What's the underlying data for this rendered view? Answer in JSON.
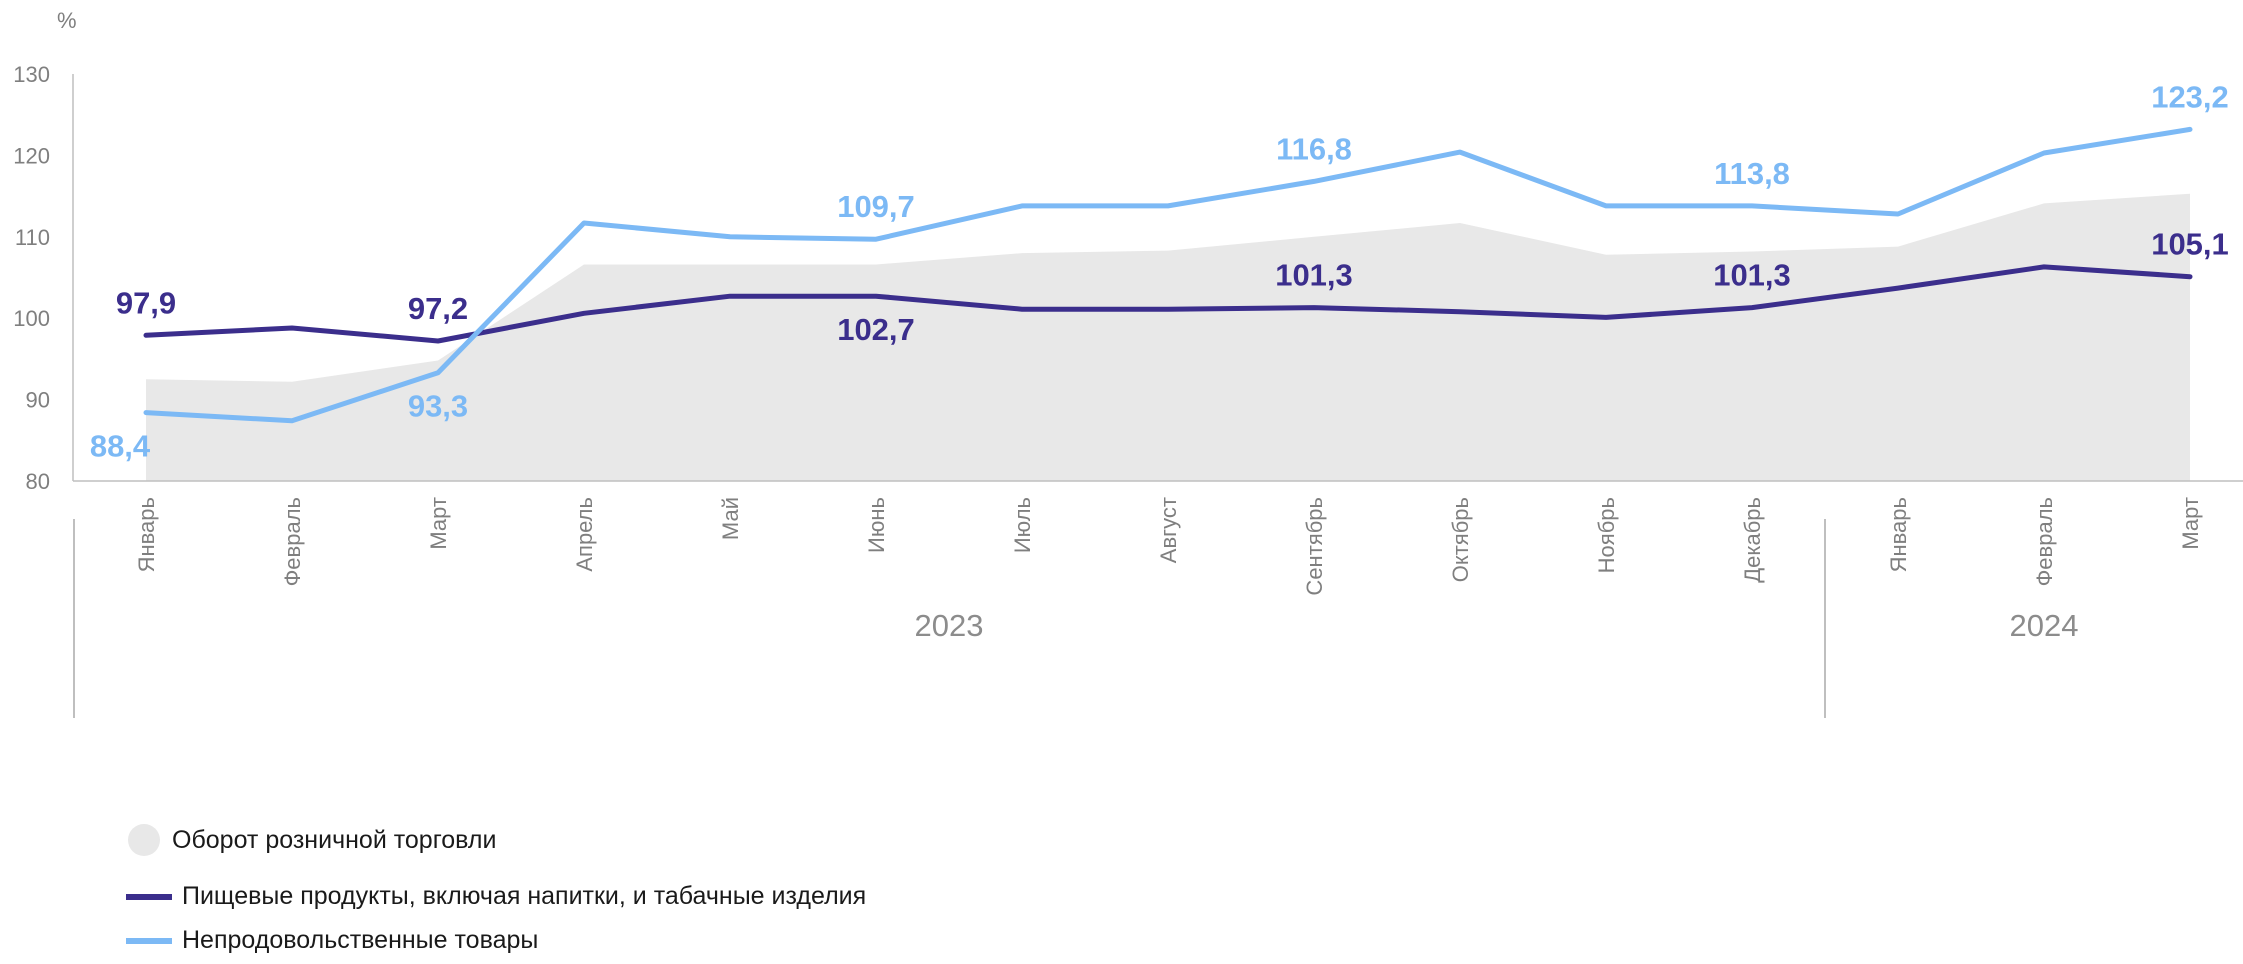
{
  "chart_data": {
    "type": "line",
    "unit_label": "%",
    "ylim": [
      80,
      130
    ],
    "yticks": [
      80,
      90,
      100,
      110,
      120,
      130
    ],
    "categories": [
      "Январь",
      "Февраль",
      "Март",
      "Апрель",
      "Май",
      "Июнь",
      "Июль",
      "Август",
      "Сентябрь",
      "Октябрь",
      "Ноябрь",
      "Декабрь",
      "Январь",
      "Февраль",
      "Март"
    ],
    "years": [
      {
        "label": "2023",
        "start": 0,
        "end": 11
      },
      {
        "label": "2024",
        "start": 12,
        "end": 14
      }
    ],
    "series": [
      {
        "name": "Оборот розничной торговли",
        "kind": "area",
        "color": "#e8e8e8",
        "values": [
          92.5,
          92.2,
          94.8,
          106.6,
          106.6,
          106.6,
          108.0,
          108.3,
          110.0,
          111.7,
          107.8,
          108.2,
          108.8,
          114.1,
          115.3
        ]
      },
      {
        "name": "Пищевые продукты, включая напитки, и табачные изделия",
        "kind": "line",
        "color": "#3b2e8c",
        "values": [
          97.9,
          98.8,
          97.2,
          100.6,
          102.7,
          102.7,
          101.1,
          101.1,
          101.3,
          100.8,
          100.1,
          101.3,
          103.7,
          106.3,
          105.1
        ],
        "labels": [
          {
            "index": 0,
            "text": "97,9",
            "pos": "above"
          },
          {
            "index": 2,
            "text": "97,2",
            "pos": "above"
          },
          {
            "index": 5,
            "text": "102,7",
            "pos": "below"
          },
          {
            "index": 8,
            "text": "101,3",
            "pos": "above"
          },
          {
            "index": 11,
            "text": "101,3",
            "pos": "above"
          },
          {
            "index": 14,
            "text": "105,1",
            "pos": "above"
          }
        ]
      },
      {
        "name": "Непродовольственные товары",
        "kind": "line",
        "color": "#7cb9f5",
        "values": [
          88.4,
          87.4,
          93.3,
          111.7,
          110.0,
          109.7,
          113.8,
          113.8,
          116.8,
          120.4,
          113.8,
          113.8,
          112.8,
          120.3,
          123.2
        ],
        "labels": [
          {
            "index": 0,
            "text": "88,4",
            "pos": "below"
          },
          {
            "index": 2,
            "text": "93,3",
            "pos": "below"
          },
          {
            "index": 5,
            "text": "109,7",
            "pos": "above"
          },
          {
            "index": 8,
            "text": "116,8",
            "pos": "above"
          },
          {
            "index": 11,
            "text": "113,8",
            "pos": "above"
          },
          {
            "index": 14,
            "text": "123,2",
            "pos": "above"
          }
        ]
      }
    ],
    "grid": false,
    "legend_position": "bottom-left"
  }
}
